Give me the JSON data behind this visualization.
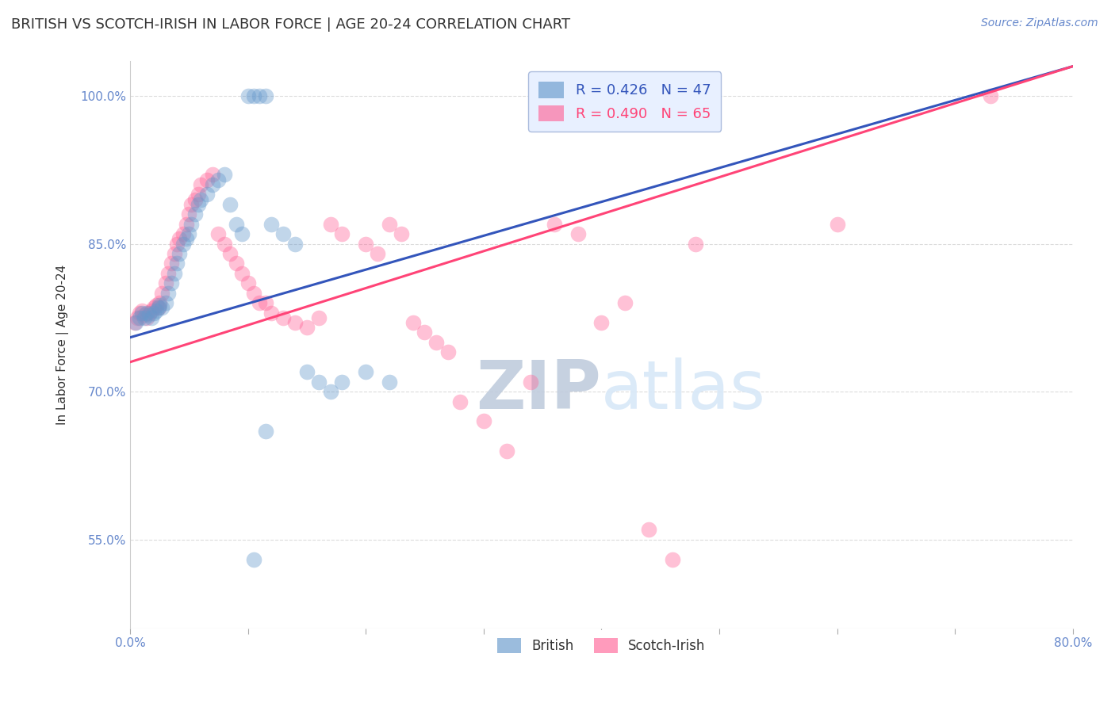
{
  "title": "BRITISH VS SCOTCH-IRISH IN LABOR FORCE | AGE 20-24 CORRELATION CHART",
  "source": "Source: ZipAtlas.com",
  "ylabel": "In Labor Force | Age 20-24",
  "watermark": "ZIPatlas",
  "xlim": [
    0.0,
    0.8
  ],
  "ylim": [
    0.46,
    1.035
  ],
  "xticks": [
    0.0,
    0.1,
    0.2,
    0.3,
    0.4,
    0.5,
    0.6,
    0.7,
    0.8
  ],
  "xticklabels": [
    "0.0%",
    "",
    "",
    "",
    "",
    "",
    "",
    "",
    "80.0%"
  ],
  "yticks": [
    0.55,
    0.7,
    0.85,
    1.0
  ],
  "yticklabels": [
    "55.0%",
    "70.0%",
    "85.0%",
    "100.0%"
  ],
  "british_R": 0.426,
  "british_N": 47,
  "scotch_R": 0.49,
  "scotch_N": 65,
  "british_color": "#6699CC",
  "scotch_color": "#FF6699",
  "british_line_color": "#3355BB",
  "scotch_line_color": "#FF4477",
  "legend_box_color": "#E8F0FF",
  "british_x": [
    0.005,
    0.008,
    0.01,
    0.012,
    0.014,
    0.016,
    0.018,
    0.02,
    0.022,
    0.024,
    0.025,
    0.027,
    0.03,
    0.032,
    0.035,
    0.038,
    0.04,
    0.042,
    0.045,
    0.048,
    0.05,
    0.052,
    0.055,
    0.058,
    0.06,
    0.065,
    0.07,
    0.075,
    0.08,
    0.085,
    0.09,
    0.095,
    0.1,
    0.105,
    0.11,
    0.115,
    0.12,
    0.13,
    0.14,
    0.15,
    0.16,
    0.17,
    0.18,
    0.2,
    0.22,
    0.105,
    0.115
  ],
  "british_y": [
    0.77,
    0.775,
    0.78,
    0.775,
    0.78,
    0.778,
    0.775,
    0.78,
    0.782,
    0.785,
    0.788,
    0.785,
    0.79,
    0.8,
    0.81,
    0.82,
    0.83,
    0.84,
    0.85,
    0.855,
    0.86,
    0.87,
    0.88,
    0.89,
    0.895,
    0.9,
    0.91,
    0.915,
    0.92,
    0.89,
    0.87,
    0.86,
    1.0,
    1.0,
    1.0,
    1.0,
    0.87,
    0.86,
    0.85,
    0.72,
    0.71,
    0.7,
    0.71,
    0.72,
    0.71,
    0.53,
    0.66
  ],
  "scotch_x": [
    0.004,
    0.006,
    0.008,
    0.01,
    0.012,
    0.014,
    0.016,
    0.018,
    0.02,
    0.022,
    0.024,
    0.025,
    0.027,
    0.03,
    0.032,
    0.035,
    0.038,
    0.04,
    0.042,
    0.045,
    0.048,
    0.05,
    0.052,
    0.055,
    0.058,
    0.06,
    0.065,
    0.07,
    0.075,
    0.08,
    0.085,
    0.09,
    0.095,
    0.1,
    0.105,
    0.11,
    0.115,
    0.12,
    0.13,
    0.14,
    0.15,
    0.16,
    0.17,
    0.18,
    0.2,
    0.21,
    0.22,
    0.23,
    0.24,
    0.25,
    0.26,
    0.27,
    0.28,
    0.3,
    0.32,
    0.34,
    0.36,
    0.38,
    0.4,
    0.42,
    0.44,
    0.46,
    0.48,
    0.6,
    0.73
  ],
  "scotch_y": [
    0.77,
    0.775,
    0.78,
    0.782,
    0.778,
    0.775,
    0.78,
    0.782,
    0.785,
    0.788,
    0.785,
    0.79,
    0.8,
    0.81,
    0.82,
    0.83,
    0.84,
    0.85,
    0.855,
    0.86,
    0.87,
    0.88,
    0.89,
    0.895,
    0.9,
    0.91,
    0.915,
    0.92,
    0.86,
    0.85,
    0.84,
    0.83,
    0.82,
    0.81,
    0.8,
    0.79,
    0.79,
    0.78,
    0.775,
    0.77,
    0.765,
    0.775,
    0.87,
    0.86,
    0.85,
    0.84,
    0.87,
    0.86,
    0.77,
    0.76,
    0.75,
    0.74,
    0.69,
    0.67,
    0.64,
    0.71,
    0.87,
    0.86,
    0.77,
    0.79,
    0.56,
    0.53,
    0.85,
    0.87,
    1.0
  ],
  "background_color": "#FFFFFF",
  "grid_color": "#CCCCCC",
  "title_color": "#333333",
  "axis_color": "#6688CC",
  "watermark_color": "#C8D8F0",
  "british_line_x0": 0.0,
  "british_line_y0": 0.755,
  "british_line_x1": 0.8,
  "british_line_y1": 1.03,
  "scotch_line_x0": 0.0,
  "scotch_line_y0": 0.73,
  "scotch_line_x1": 0.8,
  "scotch_line_y1": 1.03
}
